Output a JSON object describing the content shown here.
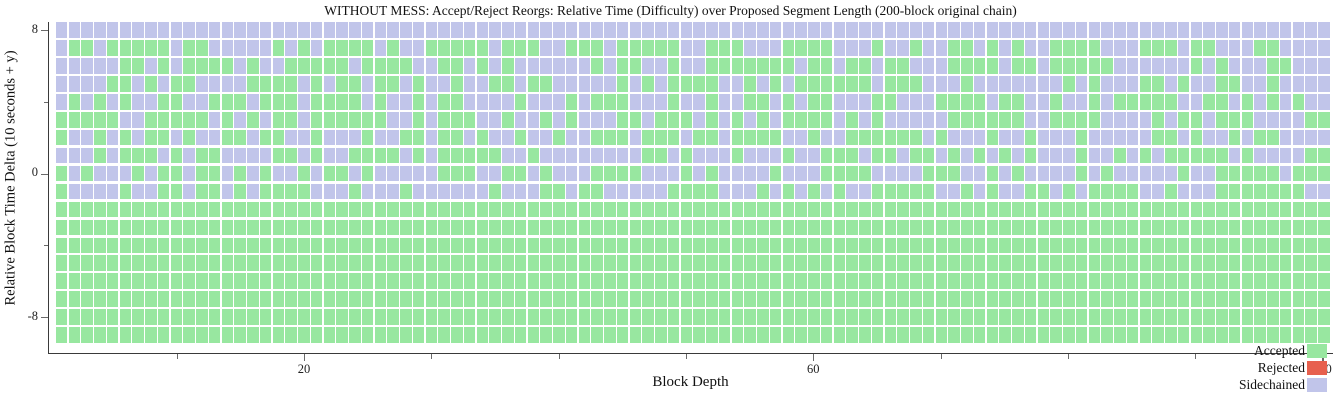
{
  "title": "WITHOUT MESS: Accept/Reject Reorgs: Relative Time (Difficulty) over Proposed Segment Length (200-block original chain)",
  "colors": {
    "accepted": "#98e7a0",
    "rejected": "#e7604e",
    "sidechained": "#c1c5ea",
    "axis": "#3a3a3a"
  },
  "legend": [
    {
      "label": "Accepted",
      "state": "G"
    },
    {
      "label": "Rejected",
      "state": "R"
    },
    {
      "label": "Sidechained",
      "state": "S"
    }
  ],
  "chart_data": {
    "type": "heatmap",
    "title": "WITHOUT MESS: Accept/Reject Reorgs: Relative Time (Difficulty) over Proposed Segment Length (200-block original chain)",
    "xlabel": "Block Depth",
    "ylabel": "Relative Block Time Delta (10 seconds + y)",
    "x_range": [
      1,
      100
    ],
    "columns": 100,
    "grid": false,
    "legend_position": "lower right",
    "x_ticks": [
      {
        "value": 10,
        "label": ""
      },
      {
        "value": 20,
        "label": "20"
      },
      {
        "value": 30,
        "label": ""
      },
      {
        "value": 40,
        "label": ""
      },
      {
        "value": 50,
        "label": ""
      },
      {
        "value": 60,
        "label": "60"
      },
      {
        "value": 70,
        "label": ""
      },
      {
        "value": 80,
        "label": ""
      },
      {
        "value": 90,
        "label": ""
      },
      {
        "value": 100,
        "label": "100"
      }
    ],
    "y_ticks": [
      {
        "value": 8,
        "label": "8"
      },
      {
        "value": 4,
        "label": ""
      },
      {
        "value": 0,
        "label": "0"
      },
      {
        "value": -4,
        "label": ""
      },
      {
        "value": -8,
        "label": "-8"
      }
    ],
    "cell_states": {
      "G": "Accepted",
      "R": "Rejected",
      "S": "Sidechained"
    },
    "rows": [
      {
        "y": 8,
        "fill": "S"
      },
      {
        "y": 7,
        "segments": [
          "SGGSGGGGGSGGSSS",
          "SSGSGSGGGGSGSSG",
          "GGGGSGGGSSGGGSG",
          "GGGGSSGGGSSSGGG",
          "GSSSGSSGSSGGSGS",
          "GSSGGGGSSSGGGSG",
          "GSSSGGSSSS"
        ]
      },
      {
        "y": 6,
        "segments": [
          "SSSSSGGSGSGGGGS",
          "GSSGGGGGSGGGGSS",
          "GGSGSGSSSSSSGSG",
          "GSSGSSGGGGGGGSG",
          "GSGGSGGSSSGGGGS",
          "GGSGGGGGSSSSSSG",
          "SGSSSGGSSS"
        ]
      },
      {
        "y": 5,
        "segments": [
          "SSSSGGSGSGGSSSS",
          "GGGGSGSGGSGGSGS",
          "SGSSGGSGGSSSSSG",
          "SGSGGGGSSGSGSGG",
          "GGGGSGGGSSSGSSS",
          "SSSSGSGSSSGGSGS",
          "SGGSSGSSSS"
        ]
      },
      {
        "y": 4,
        "segments": [
          "SGSGSGSSGGSSGGG",
          "SGGGSGGGGSGSSGS",
          "GGSSSSGSSSGSGGG",
          "SSSGSSGSSGGSGSG",
          "GSSSGGSSSGGGGSG",
          "GSSGSSGSGGGGGSS",
          "GGSGSGSGSS"
        ]
      },
      {
        "y": 3,
        "segments": [
          "GGGGGSSGGGGGSGS",
          "GSGGSGGGGGGSSGS",
          "GGGSSGSSGSGSSSG",
          "GSGGGSGSGSGSGGG",
          "GSGSGSSSSSGGGGG",
          "GSSGGGGSSSSGSGG",
          "SGGGSSSSGG"
        ]
      },
      {
        "y": 2,
        "segments": [
          "GSSGSGSGGSGSSGG",
          "SGGSSGSSSGSSGGS",
          "GGSGSSGSSGSSGGG",
          "SGGGSGGSGGGGSSG",
          "SSGGGGGGSGSSSGS",
          "SGSSSGSSSSSGGSG",
          "SSGSGGSSSS"
        ]
      },
      {
        "y": 1,
        "segments": [
          "SSSGSGGGSGSGGSS",
          "SSGGSGSSGGGGSGS",
          "GGGGGSSGSSSSSSS",
          "SGGSGSSSGSSSGSS",
          "GGGSGGSGGSGSGSG",
          "SGSSSGSSGSGSGGG",
          "GGSGSSSSGG"
        ]
      },
      {
        "y": 0,
        "segments": [
          "GSGSSSGSGGSGGSG",
          "SGSSGSGGSGSSSSS",
          "GGGSSGGSGSSSGGG",
          "GSSSGSGSSSSGSSS",
          "GGGGSSSSGGGSSGS",
          "GSSSSGSGSSSSSGS",
          "SGGGGGSGGG"
        ]
      },
      {
        "y": -1,
        "segments": [
          "GSSSSGSSGGSGGSG",
          "SGGGGSSSGSSSGSS",
          "SSSSGSSSGGSGGSS",
          "SSSGGGGSSSGSGSG",
          "SGSSGGGGGSSGSGS",
          "SGGSGSGGGGSSGSS",
          "SGGGGGGGSS"
        ]
      },
      {
        "y": -2,
        "fill": "G"
      },
      {
        "y": -3,
        "fill": "G"
      },
      {
        "y": -4,
        "fill": "G"
      },
      {
        "y": -5,
        "fill": "G"
      },
      {
        "y": -6,
        "fill": "G"
      },
      {
        "y": -7,
        "fill": "G"
      },
      {
        "y": -8,
        "fill": "G"
      },
      {
        "y": -9,
        "fill": "G"
      }
    ]
  }
}
